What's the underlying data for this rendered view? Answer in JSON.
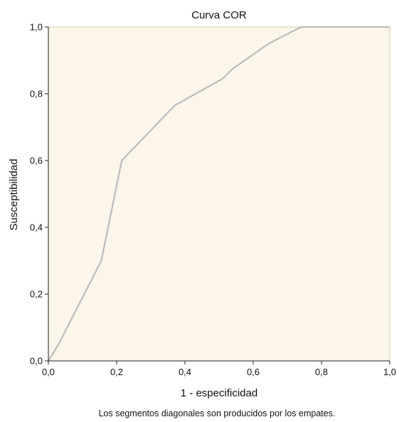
{
  "chart_data": {
    "type": "line",
    "title": "Curva COR",
    "xlabel": "1 - especificidad",
    "ylabel": "Susceptibilidad",
    "footnote": "Los segmentos diagonales son producidos por los empates.",
    "xlim": [
      0,
      1
    ],
    "ylim": [
      0,
      1
    ],
    "x_ticks": [
      0,
      0.2,
      0.4,
      0.6,
      0.8,
      1.0
    ],
    "y_ticks": [
      0,
      0.2,
      0.4,
      0.6,
      0.8,
      1.0
    ],
    "x_tick_labels": [
      "0,0",
      "0,2",
      "0,4",
      "0,6",
      "0,8",
      "1,0"
    ],
    "y_tick_labels": [
      "0,0",
      "0,2",
      "0,4",
      "0,6",
      "0,8",
      "1,0"
    ],
    "grid": false,
    "legend": "none",
    "series": [
      {
        "x": [
          0.0,
          0.03,
          0.155,
          0.215,
          0.37,
          0.51,
          0.54,
          0.645,
          0.74,
          1.0
        ],
        "y": [
          0.0,
          0.05,
          0.3,
          0.6,
          0.765,
          0.845,
          0.875,
          0.95,
          1.0,
          1.0
        ]
      }
    ]
  },
  "colors": {
    "plot_background": "#fbf5ea",
    "plot_border": "#d9cfa6",
    "line": "#bcbcbc",
    "axis": "#222222"
  }
}
